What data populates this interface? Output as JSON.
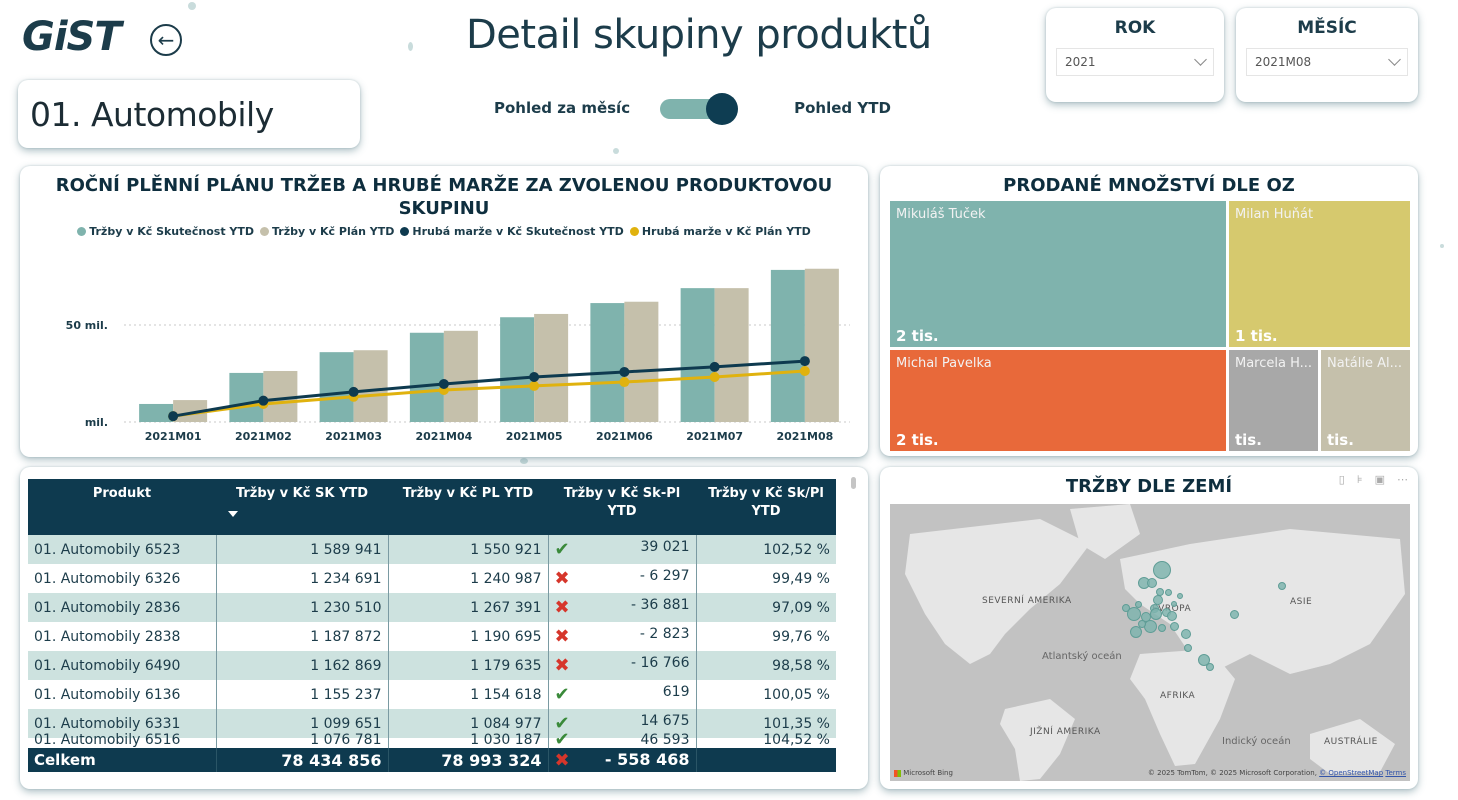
{
  "header": {
    "logo": "GiST",
    "back_icon": "arrow-left-circle-icon",
    "title": "Detail skupiny produktů",
    "product_group": "01. Automobily"
  },
  "view_toggle": {
    "left_label": "Pohled za měsíc",
    "right_label": "Pohled YTD",
    "state": "YTD"
  },
  "slicers": {
    "year": {
      "title": "ROK",
      "value": "2021"
    },
    "month": {
      "title": "MĚSÍC",
      "value": "2021M08"
    }
  },
  "colors": {
    "accent_dark": "#0e3a4f",
    "teal": "#7fb3ad",
    "beige": "#c5c0ab",
    "gold": "#e0b20e",
    "orange": "#e8693a",
    "olive": "#d6c96e",
    "gray": "#a8a8a8"
  },
  "chart": {
    "title_line1": "ROČNÍ PLĚNNÍ PLÁNU TRŽEB A HRUBÉ MARŽE ZA ZVOLENOU PRODUKTOVOU",
    "title_line2": "SKUPINU",
    "legend": [
      {
        "label": "Tržby v Kč Skutečnost YTD",
        "color": "#7fb3ad"
      },
      {
        "label": "Tržby v Kč Plán YTD",
        "color": "#c5c0ab"
      },
      {
        "label": "Hrubá marže v Kč Skutečnost YTD",
        "color": "#0e3a4f"
      },
      {
        "label": "Hrubá marže v Kč Plán YTD",
        "color": "#e0b20e"
      }
    ]
  },
  "chart_data": {
    "type": "bar",
    "title": "ROČNÍ PLĚNNÍ PLÁNU TRŽEB A HRUBÉ MARŽE ZA ZVOLENOU PRODUKTOVOU SKUPINU",
    "xlabel": "",
    "ylabel": "",
    "unit": "mil.",
    "ylim": [
      0,
      80
    ],
    "yticks": [
      {
        "value": 0,
        "label": "mil."
      },
      {
        "value": 50,
        "label": "50 mil."
      }
    ],
    "grid": true,
    "legend_position": "top",
    "categories": [
      "2021M01",
      "2021M02",
      "2021M03",
      "2021M04",
      "2021M05",
      "2021M06",
      "2021M07",
      "2021M08"
    ],
    "series": [
      {
        "name": "Tržby v Kč Skutečnost YTD",
        "kind": "bar",
        "color": "#7fb3ad",
        "values": [
          9.3,
          25.3,
          36.0,
          46.0,
          54.0,
          61.3,
          69.0,
          78.4
        ]
      },
      {
        "name": "Tržby v Kč Plán YTD",
        "kind": "bar",
        "color": "#c5c0ab",
        "values": [
          11.3,
          26.3,
          37.0,
          47.0,
          55.7,
          62.0,
          69.0,
          79.0
        ]
      },
      {
        "name": "Hrubá marže v Kč Skutečnost YTD",
        "kind": "line",
        "color": "#0e3a4f",
        "values": [
          3.0,
          11.0,
          15.5,
          19.6,
          23.2,
          25.8,
          28.4,
          31.4
        ]
      },
      {
        "name": "Hrubá marže v Kč Plán YTD",
        "kind": "line",
        "color": "#e0b20e",
        "values": [
          3.0,
          9.3,
          13.0,
          16.5,
          18.6,
          20.6,
          23.2,
          26.3
        ]
      }
    ]
  },
  "treemap": {
    "title": "PRODANÉ MNOŽSTVÍ DLE OZ",
    "tiles": [
      {
        "name": "Mikuláš Tuček",
        "value_label": "2 tis.",
        "color": "#7fb3ad"
      },
      {
        "name": "Milan Huňát",
        "value_label": "1 tis.",
        "color": "#d6c96e"
      },
      {
        "name": "Michal Pavelka",
        "value_label": "2 tis.",
        "color": "#e8693a"
      },
      {
        "name": "Marcela H...",
        "value_label": "tis.",
        "color": "#a8a8a8"
      },
      {
        "name": "Natálie Al...",
        "value_label": "tis.",
        "color": "#c5c0ab"
      }
    ]
  },
  "table": {
    "columns": [
      "Produkt",
      "Tržby v Kč SK YTD",
      "Tržby v Kč PL YTD",
      "Tržby v Kč Sk-Pl YTD",
      "Tržby v Kč Sk/Pl YTD"
    ],
    "rows": [
      {
        "product": "01. Automobily 6523",
        "sk": "1 589 941",
        "pl": "1 550 921",
        "status": "ok",
        "diff": "39 021",
        "pct": "102,52 %"
      },
      {
        "product": "01. Automobily 6326",
        "sk": "1 234 691",
        "pl": "1 240 987",
        "status": "bad",
        "diff": "- 6 297",
        "pct": "99,49 %"
      },
      {
        "product": "01. Automobily 2836",
        "sk": "1 230 510",
        "pl": "1 267 391",
        "status": "bad",
        "diff": "- 36 881",
        "pct": "97,09 %"
      },
      {
        "product": "01. Automobily 2838",
        "sk": "1 187 872",
        "pl": "1 190 695",
        "status": "bad",
        "diff": "- 2 823",
        "pct": "99,76 %"
      },
      {
        "product": "01. Automobily 6490",
        "sk": "1 162 869",
        "pl": "1 179 635",
        "status": "bad",
        "diff": "- 16 766",
        "pct": "98,58 %"
      },
      {
        "product": "01. Automobily 6136",
        "sk": "1 155 237",
        "pl": "1 154 618",
        "status": "ok",
        "diff": "619",
        "pct": "100,05 %"
      },
      {
        "product": "01. Automobily 6331",
        "sk": "1 099 651",
        "pl": "1 084 977",
        "status": "ok",
        "diff": "14 675",
        "pct": "101,35 %"
      },
      {
        "product": "01. Automobily 6516",
        "sk": "1 076 781",
        "pl": "1 030 187",
        "status": "ok",
        "diff": "46 593",
        "pct": "104,52 %"
      }
    ],
    "total": {
      "label": "Celkem",
      "sk": "78 434 856",
      "pl": "78 993 324",
      "status": "bad",
      "diff": "- 558 468",
      "pct": ""
    }
  },
  "map": {
    "title": "TRŽBY DLE ZEMÍ",
    "header_icons": [
      "pin-icon",
      "filter-icon",
      "focus-mode-icon",
      "more-options-icon"
    ],
    "labels": {
      "north_america": "SEVERNÍ AMERIKA",
      "europe": "EVROPA",
      "asia": "ASIE",
      "atlantic": "Atlantský oceán",
      "africa": "AFRIKA",
      "south_america": "JIŽNÍ AMERIKA",
      "indian": "Indický oceán",
      "australia": "AUSTRÁLIE"
    },
    "bing_label": "Microsoft Bing",
    "copyright": "© 2025 TomTom, © 2025 Microsoft Corporation,",
    "osm_link": "© OpenStreetMap",
    "terms_link": "Terms"
  }
}
